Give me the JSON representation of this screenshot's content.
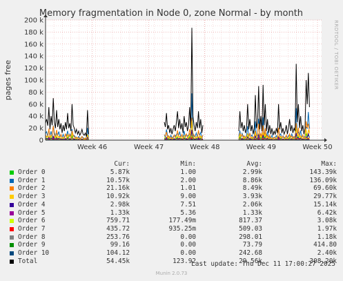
{
  "chart_data": {
    "type": "line",
    "title": "Memory fragmentation in Node 0, zone Normal - by month",
    "ylabel": "pages free",
    "side_label": "RRDTOOL / TOBI OETIKER",
    "ylim": [
      0,
      200000
    ],
    "y_ticks": [
      {
        "value": 0,
        "label": "0"
      },
      {
        "value": 20000,
        "label": "20 k"
      },
      {
        "value": 40000,
        "label": "40 k"
      },
      {
        "value": 60000,
        "label": "60 k"
      },
      {
        "value": 80000,
        "label": "80 k"
      },
      {
        "value": 100000,
        "label": "100 k"
      },
      {
        "value": 120000,
        "label": "120 k"
      },
      {
        "value": 140000,
        "label": "140 k"
      },
      {
        "value": 160000,
        "label": "160 k"
      },
      {
        "value": 180000,
        "label": "180 k"
      },
      {
        "value": 200000,
        "label": "200 k"
      }
    ],
    "x_ticks": [
      {
        "pos": 0.169,
        "label": "Week 46"
      },
      {
        "pos": 0.374,
        "label": "Week 47"
      },
      {
        "pos": 0.577,
        "label": "Week 48"
      },
      {
        "pos": 0.781,
        "label": "Week 49"
      },
      {
        "pos": 0.985,
        "label": "Week 50"
      }
    ],
    "x_range": [
      0,
      1
    ],
    "data_gaps_note": "",
    "total_series": {
      "name": "Total",
      "color": "#000000",
      "points": [
        [
          0.0,
          28000
        ],
        [
          0.004,
          35000
        ],
        [
          0.008,
          24000
        ],
        [
          0.012,
          55000
        ],
        [
          0.016,
          18000
        ],
        [
          0.02,
          40000
        ],
        [
          0.024,
          25000
        ],
        [
          0.028,
          70000
        ],
        [
          0.032,
          30000
        ],
        [
          0.036,
          20000
        ],
        [
          0.04,
          50000
        ],
        [
          0.044,
          22000
        ],
        [
          0.048,
          35000
        ],
        [
          0.052,
          18000
        ],
        [
          0.056,
          28000
        ],
        [
          0.06,
          12000
        ],
        [
          0.064,
          25000
        ],
        [
          0.068,
          15000
        ],
        [
          0.072,
          30000
        ],
        [
          0.076,
          18000
        ],
        [
          0.08,
          45000
        ],
        [
          0.084,
          20000
        ],
        [
          0.088,
          28000
        ],
        [
          0.092,
          15000
        ],
        [
          0.096,
          60000
        ],
        [
          0.1,
          25000
        ],
        [
          0.104,
          20000
        ],
        [
          0.108,
          12000
        ],
        [
          0.112,
          18000
        ],
        [
          0.116,
          10000
        ],
        [
          0.12,
          15000
        ],
        [
          0.124,
          8000
        ],
        [
          0.128,
          12000
        ],
        [
          0.132,
          18000
        ],
        [
          0.136,
          10000
        ],
        [
          0.14,
          8000
        ],
        [
          0.144,
          12000
        ],
        [
          0.148,
          6000
        ],
        [
          0.152,
          50000
        ],
        [
          0.156,
          10000
        ],
        [
          0.43,
          30000
        ],
        [
          0.434,
          22000
        ],
        [
          0.438,
          45000
        ],
        [
          0.442,
          18000
        ],
        [
          0.446,
          25000
        ],
        [
          0.45,
          12000
        ],
        [
          0.454,
          20000
        ],
        [
          0.458,
          10000
        ],
        [
          0.462,
          18000
        ],
        [
          0.466,
          25000
        ],
        [
          0.47,
          15000
        ],
        [
          0.474,
          30000
        ],
        [
          0.478,
          48000
        ],
        [
          0.482,
          20000
        ],
        [
          0.486,
          35000
        ],
        [
          0.49,
          18000
        ],
        [
          0.494,
          28000
        ],
        [
          0.498,
          12000
        ],
        [
          0.502,
          40000
        ],
        [
          0.506,
          22000
        ],
        [
          0.51,
          30000
        ],
        [
          0.514,
          15000
        ],
        [
          0.518,
          25000
        ],
        [
          0.522,
          55000
        ],
        [
          0.526,
          20000
        ],
        [
          0.53,
          187000
        ],
        [
          0.534,
          40000
        ],
        [
          0.538,
          25000
        ],
        [
          0.542,
          15000
        ],
        [
          0.546,
          30000
        ],
        [
          0.55,
          20000
        ],
        [
          0.554,
          48000
        ],
        [
          0.558,
          20000
        ],
        [
          0.562,
          35000
        ],
        [
          0.566,
          12000
        ],
        [
          0.57,
          25000
        ],
        [
          0.7,
          15000
        ],
        [
          0.704,
          48000
        ],
        [
          0.708,
          20000
        ],
        [
          0.712,
          30000
        ],
        [
          0.716,
          15000
        ],
        [
          0.72,
          25000
        ],
        [
          0.724,
          12000
        ],
        [
          0.728,
          20000
        ],
        [
          0.732,
          60000
        ],
        [
          0.736,
          18000
        ],
        [
          0.74,
          35000
        ],
        [
          0.744,
          15000
        ],
        [
          0.748,
          25000
        ],
        [
          0.752,
          10000
        ],
        [
          0.756,
          20000
        ],
        [
          0.76,
          75000
        ],
        [
          0.764,
          20000
        ],
        [
          0.768,
          30000
        ],
        [
          0.772,
          90000
        ],
        [
          0.776,
          18000
        ],
        [
          0.78,
          40000
        ],
        [
          0.784,
          15000
        ],
        [
          0.788,
          92000
        ],
        [
          0.792,
          25000
        ],
        [
          0.796,
          60000
        ],
        [
          0.8,
          15000
        ],
        [
          0.804,
          35000
        ],
        [
          0.808,
          12000
        ],
        [
          0.812,
          25000
        ],
        [
          0.816,
          10000
        ],
        [
          0.82,
          20000
        ],
        [
          0.824,
          8000
        ],
        [
          0.828,
          15000
        ],
        [
          0.832,
          10000
        ],
        [
          0.836,
          20000
        ],
        [
          0.84,
          12000
        ],
        [
          0.844,
          60000
        ],
        [
          0.848,
          18000
        ],
        [
          0.852,
          30000
        ],
        [
          0.856,
          12000
        ],
        [
          0.86,
          20000
        ],
        [
          0.864,
          10000
        ],
        [
          0.868,
          15000
        ],
        [
          0.872,
          25000
        ],
        [
          0.876,
          10000
        ],
        [
          0.88,
          20000
        ],
        [
          0.884,
          35000
        ],
        [
          0.888,
          15000
        ],
        [
          0.892,
          25000
        ],
        [
          0.896,
          12000
        ],
        [
          0.9,
          20000
        ],
        [
          0.904,
          15000
        ],
        [
          0.908,
          127000
        ],
        [
          0.912,
          30000
        ],
        [
          0.916,
          60000
        ],
        [
          0.92,
          20000
        ],
        [
          0.924,
          40000
        ],
        [
          0.928,
          15000
        ],
        [
          0.932,
          25000
        ],
        [
          0.936,
          10000
        ],
        [
          0.94,
          20000
        ],
        [
          0.944,
          100000
        ],
        [
          0.948,
          60000
        ],
        [
          0.952,
          112000
        ],
        [
          0.956,
          55000
        ]
      ]
    },
    "series": [
      {
        "name": "Order 0",
        "color": "#00cc00",
        "cur": "5.87k",
        "min": "1.00",
        "avg": "2.99k",
        "max": "143.39k"
      },
      {
        "name": "Order 1",
        "color": "#0066b3",
        "cur": "10.57k",
        "min": "2.00",
        "avg": "8.86k",
        "max": "136.09k"
      },
      {
        "name": "Order 2",
        "color": "#ff8000",
        "cur": "21.16k",
        "min": "1.01",
        "avg": "8.49k",
        "max": "69.60k"
      },
      {
        "name": "Order 3",
        "color": "#ffcc00",
        "cur": "10.92k",
        "min": "9.00",
        "avg": "3.93k",
        "max": "29.77k"
      },
      {
        "name": "Order 4",
        "color": "#330099",
        "cur": "2.98k",
        "min": "7.51",
        "avg": "2.06k",
        "max": "15.14k"
      },
      {
        "name": "Order 5",
        "color": "#990099",
        "cur": "1.33k",
        "min": "5.36",
        "avg": "1.33k",
        "max": "6.42k"
      },
      {
        "name": "Order 6",
        "color": "#ccff00",
        "cur": "759.71",
        "min": "177.49m",
        "avg": "817.37",
        "max": "3.08k"
      },
      {
        "name": "Order 7",
        "color": "#ff0000",
        "cur": "435.72",
        "min": "935.25m",
        "avg": "509.03",
        "max": "1.97k"
      },
      {
        "name": "Order 8",
        "color": "#808080",
        "cur": "253.76",
        "min": "0.00",
        "avg": "298.01",
        "max": "1.18k"
      },
      {
        "name": "Order 9",
        "color": "#008f00",
        "cur": "99.16",
        "min": "0.00",
        "avg": "73.79",
        "max": "414.80"
      },
      {
        "name": "Order 10",
        "color": "#00487d",
        "cur": "104.12",
        "min": "0.00",
        "avg": "242.68",
        "max": "2.40k"
      },
      {
        "name": "Total",
        "color": "#000000",
        "cur": "54.45k",
        "min": "123.92",
        "avg": "29.56k",
        "max": "308.20k"
      }
    ],
    "legend_headers": {
      "cur": "Cur:",
      "min": "Min:",
      "avg": "Avg:",
      "max": "Max:"
    },
    "last_update": "Last update: Thu Dec 11 17:00:27 2025",
    "footer": "Munin 2.0.73"
  }
}
